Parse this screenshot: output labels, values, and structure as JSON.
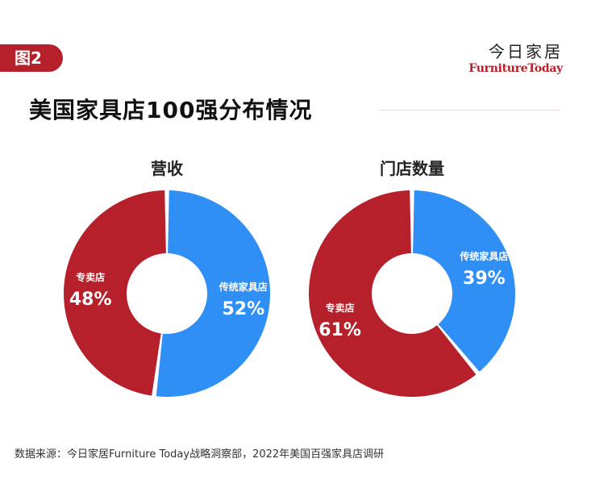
{
  "header": {
    "figure_tag": "图2",
    "brand_cn": "今日家居",
    "brand_en": "FurnitureToday",
    "title": "美国家具店100强分布情况"
  },
  "colors": {
    "specialty": "#b5202a",
    "traditional": "#2f8ff5",
    "accent": "#b5202a"
  },
  "chart_data": [
    {
      "type": "pie",
      "donut": true,
      "title": "营收",
      "slices": [
        {
          "label": "传统家具店",
          "value": 52,
          "display": "52%",
          "color": "#2f8ff5"
        },
        {
          "label": "专卖店",
          "value": 48,
          "display": "48%",
          "color": "#b5202a"
        }
      ]
    },
    {
      "type": "pie",
      "donut": true,
      "title": "门店数量",
      "slices": [
        {
          "label": "传统家具店",
          "value": 39,
          "display": "39%",
          "color": "#2f8ff5"
        },
        {
          "label": "专卖店",
          "value": 61,
          "display": "61%",
          "color": "#b5202a"
        }
      ]
    }
  ],
  "source": "数据来源：今日家居Furniture Today战略洞察部，2022年美国百强家具店调研"
}
